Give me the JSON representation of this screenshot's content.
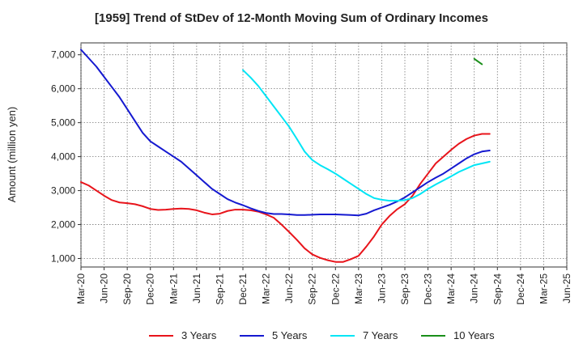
{
  "chart_data": {
    "type": "line",
    "title": "[1959]  Trend of StDev of 12-Month Moving Sum of Ordinary Incomes",
    "xlabel": "",
    "ylabel": "Amount (million yen)",
    "ylim": [
      750,
      7350
    ],
    "y_ticks": [
      1000,
      2000,
      3000,
      4000,
      5000,
      6000,
      7000
    ],
    "y_tick_labels": [
      "1,000",
      "2,000",
      "3,000",
      "4,000",
      "5,000",
      "6,000",
      "7,000"
    ],
    "x_tick_labels": [
      "Mar-20",
      "Jun-20",
      "Sep-20",
      "Dec-20",
      "Mar-21",
      "Jun-21",
      "Sep-21",
      "Dec-21",
      "Mar-22",
      "Jun-22",
      "Sep-22",
      "Dec-22",
      "Mar-23",
      "Jun-23",
      "Sep-23",
      "Dec-23",
      "Mar-24",
      "Jun-24",
      "Sep-24",
      "Dec-24",
      "Mar-25",
      "Jun-25"
    ],
    "grid": true,
    "legend_position": "bottom",
    "series": [
      {
        "name": "3 Years",
        "color": "#e8141b",
        "start_index": 0,
        "values": [
          3250,
          3150,
          3000,
          2850,
          2720,
          2650,
          2630,
          2600,
          2540,
          2460,
          2430,
          2440,
          2460,
          2470,
          2460,
          2420,
          2350,
          2300,
          2320,
          2400,
          2440,
          2440,
          2420,
          2380,
          2300,
          2200,
          2000,
          1780,
          1550,
          1300,
          1120,
          1020,
          950,
          900,
          900,
          980,
          1080,
          1350,
          1650,
          2000,
          2250,
          2450,
          2600,
          2850,
          3200,
          3500,
          3800,
          4000,
          4200,
          4380,
          4520,
          4620,
          4670,
          4670
        ]
      },
      {
        "name": "5 Years",
        "color": "#1519d0",
        "start_index": 0,
        "values": [
          7150,
          6900,
          6650,
          6350,
          6050,
          5750,
          5400,
          5050,
          4700,
          4450,
          4300,
          4150,
          4000,
          3850,
          3650,
          3450,
          3250,
          3050,
          2900,
          2750,
          2650,
          2570,
          2480,
          2400,
          2340,
          2310,
          2310,
          2300,
          2280,
          2280,
          2290,
          2300,
          2300,
          2300,
          2290,
          2280,
          2270,
          2320,
          2420,
          2500,
          2580,
          2680,
          2800,
          2950,
          3100,
          3250,
          3380,
          3500,
          3650,
          3800,
          3950,
          4070,
          4150,
          4180
        ]
      },
      {
        "name": "7 Years",
        "color": "#00e5f5",
        "start_index": 21,
        "values": [
          6550,
          6330,
          6080,
          5780,
          5480,
          5180,
          4880,
          4520,
          4150,
          3900,
          3750,
          3630,
          3500,
          3350,
          3200,
          3050,
          2900,
          2780,
          2730,
          2700,
          2700,
          2720,
          2780,
          2900,
          3050,
          3180,
          3300,
          3420,
          3550,
          3650,
          3750,
          3800,
          3850
        ]
      },
      {
        "name": "10 Years",
        "color": "#1a8f1a",
        "start_index": 51,
        "values": [
          6880,
          6720
        ]
      }
    ]
  }
}
